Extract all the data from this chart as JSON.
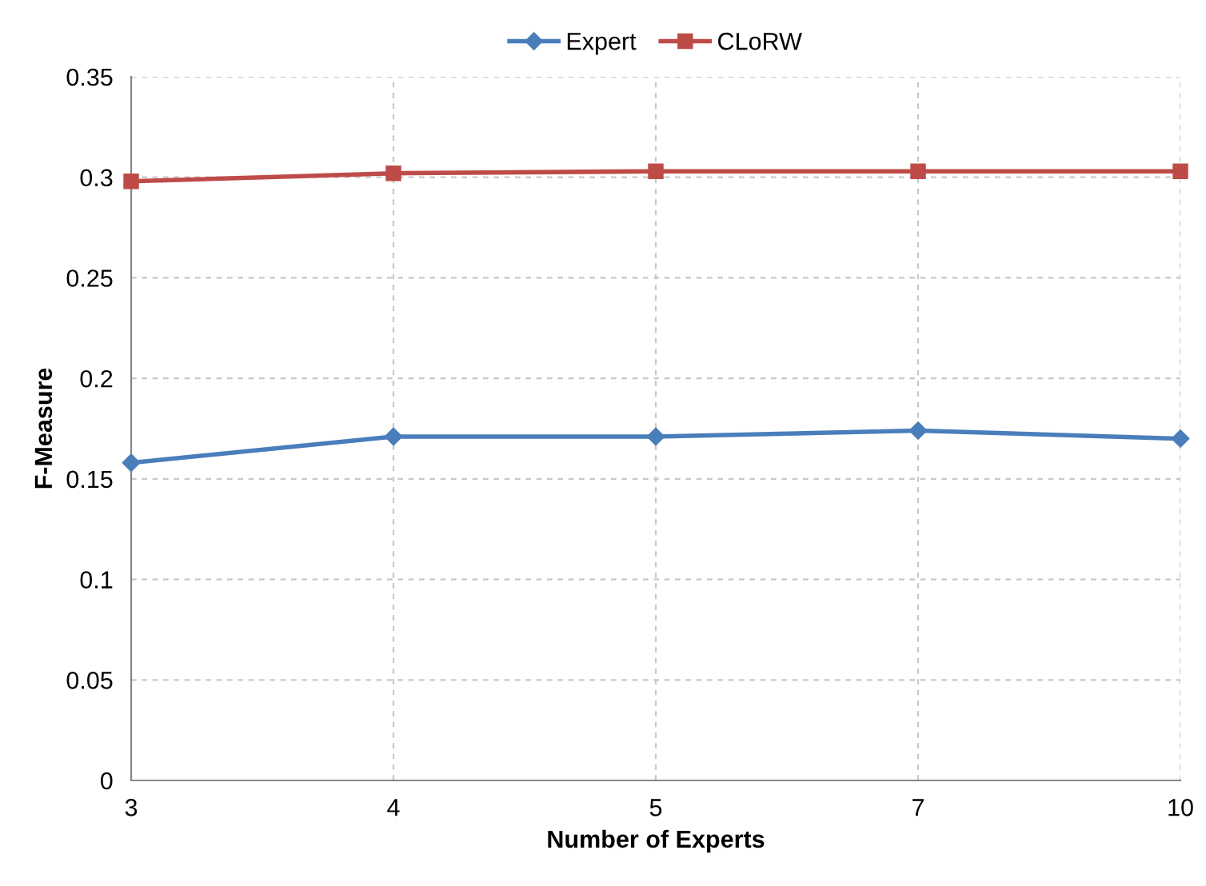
{
  "chart_data": {
    "type": "line",
    "xlabel": "Number of Experts",
    "ylabel": "F-Measure",
    "categories": [
      "3",
      "4",
      "5",
      "7",
      "10"
    ],
    "series": [
      {
        "name": "Expert",
        "color": "#4a7ebb",
        "marker": "diamond",
        "values": [
          0.158,
          0.171,
          0.171,
          0.174,
          0.17
        ]
      },
      {
        "name": "CLoRW",
        "color": "#be4b48",
        "marker": "square",
        "values": [
          0.298,
          0.302,
          0.303,
          0.303,
          0.303
        ]
      }
    ],
    "ylim": [
      0,
      0.35
    ],
    "yticks": [
      0,
      0.05,
      0.1,
      0.15,
      0.2,
      0.25,
      0.3,
      0.35
    ],
    "grid": true,
    "legend": "top",
    "line_style": "solid"
  }
}
